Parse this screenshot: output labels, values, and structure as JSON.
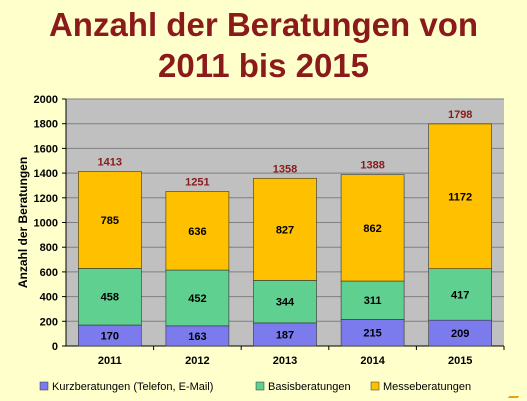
{
  "title": {
    "line1": "Anzahl der Beratungen von",
    "line2": "2011 bis 2015"
  },
  "chart_data": {
    "type": "bar",
    "stacked": true,
    "categories": [
      "2011",
      "2012",
      "2013",
      "2014",
      "2015"
    ],
    "series": [
      {
        "name": "Kurzberatungen (Telefon, E-Mail)",
        "color": "#7B7BEE",
        "values": [
          170,
          163,
          187,
          215,
          209
        ]
      },
      {
        "name": "Basisberatungen",
        "color": "#5FD08F",
        "values": [
          458,
          452,
          344,
          311,
          417
        ]
      },
      {
        "name": "Messeberatungen",
        "color": "#FFC000",
        "values": [
          785,
          636,
          827,
          862,
          1172
        ]
      }
    ],
    "totals": [
      1413,
      1251,
      1358,
      1388,
      1798
    ],
    "title": "",
    "xlabel": "",
    "ylabel": "Anzahl der Beratungen",
    "ylim": [
      0,
      2000
    ],
    "yticks": [
      0,
      200,
      400,
      600,
      800,
      1000,
      1200,
      1400,
      1600,
      1800,
      2000
    ],
    "grid": true,
    "legend_position": "bottom",
    "colors": {
      "plot_background": "#C0C0C0",
      "gridline": "#808080",
      "total_label": "#8B1A1A",
      "page_background": "#FFFFCC"
    }
  }
}
